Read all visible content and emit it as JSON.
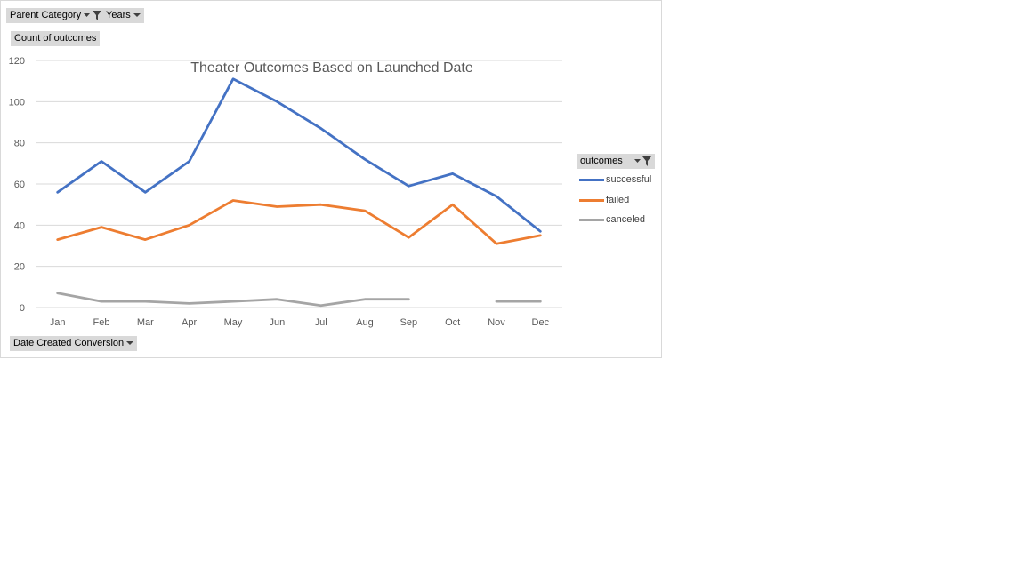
{
  "filters": {
    "parent_category": "Parent Category",
    "years": "Years",
    "value_field": "Count of outcomes",
    "axis_field": "Date Created Conversion",
    "legend_field": "outcomes"
  },
  "colors": {
    "successful": "#4472c4",
    "failed": "#ed7d31",
    "canceled": "#a5a5a5",
    "gridline": "#d9d9d9",
    "tick_text": "#595959",
    "title_text": "#595959"
  },
  "chart_data": {
    "type": "line",
    "title": "Theater Outcomes Based on Launched Date",
    "xlabel": "",
    "ylabel": "",
    "categories": [
      "Jan",
      "Feb",
      "Mar",
      "Apr",
      "May",
      "Jun",
      "Jul",
      "Aug",
      "Sep",
      "Oct",
      "Nov",
      "Dec"
    ],
    "ylim": [
      0,
      120
    ],
    "yticks": [
      0,
      20,
      40,
      60,
      80,
      100,
      120
    ],
    "grid": true,
    "legend_position": "right",
    "series": [
      {
        "name": "successful",
        "values": [
          56,
          71,
          56,
          71,
          111,
          100,
          87,
          72,
          59,
          65,
          54,
          37
        ]
      },
      {
        "name": "failed",
        "values": [
          33,
          39,
          33,
          40,
          52,
          49,
          50,
          47,
          34,
          50,
          31,
          35
        ]
      },
      {
        "name": "canceled",
        "values": [
          7,
          3,
          3,
          2,
          3,
          4,
          1,
          4,
          4,
          null,
          3,
          3
        ]
      }
    ]
  }
}
